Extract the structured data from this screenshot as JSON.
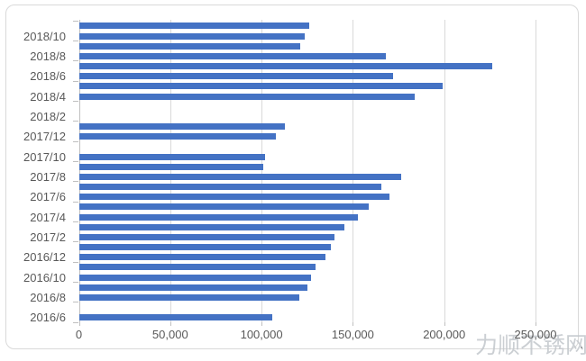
{
  "chart_data": {
    "type": "bar",
    "orientation": "horizontal",
    "title": "",
    "xlabel": "",
    "ylabel": "",
    "xlim": [
      0,
      250000
    ],
    "grid": "vertical",
    "legend": "none",
    "categories": [
      "2018/11",
      "2018/10",
      "2018/9",
      "2018/8",
      "2018/7",
      "2018/6",
      "2018/5",
      "2018/4",
      "2018/3",
      "2018/2",
      "2018/1",
      "2017/12",
      "2017/11",
      "2017/10",
      "2017/9",
      "2017/8",
      "2017/7",
      "2017/6",
      "2017/5",
      "2017/4",
      "2017/3",
      "2017/2",
      "2017/1",
      "2016/12",
      "2016/11",
      "2016/10",
      "2016/9",
      "2016/8",
      "2016/7",
      "2016/6"
    ],
    "values": [
      126000,
      123500,
      121000,
      168000,
      226500,
      172000,
      199000,
      184000,
      0,
      0,
      113000,
      108000,
      0,
      102000,
      101000,
      176500,
      165500,
      170000,
      158500,
      153000,
      145500,
      140000,
      138000,
      135000,
      129500,
      127000,
      125000,
      120500,
      0,
      106000
    ],
    "visible_y_tick_labels": [
      "2018/10",
      "2018/8",
      "2018/6",
      "2018/4",
      "2018/2",
      "2017/12",
      "2017/10",
      "2017/8",
      "2017/6",
      "2017/4",
      "2017/2",
      "2016/12",
      "2016/10",
      "2016/8",
      "2016/6"
    ],
    "x_tick_labels": [
      "0",
      "50,000",
      "100,000",
      "150,000",
      "200,000",
      "250,000"
    ],
    "x_tick_values": [
      0,
      50000,
      100000,
      150000,
      200000,
      250000
    ],
    "bar_color": "#4472c4",
    "gridline_color": "#d9d9d9",
    "axis_label_color": "#595959"
  },
  "watermark": {
    "text": "力顺不锈网",
    "trailing_dot": "."
  }
}
